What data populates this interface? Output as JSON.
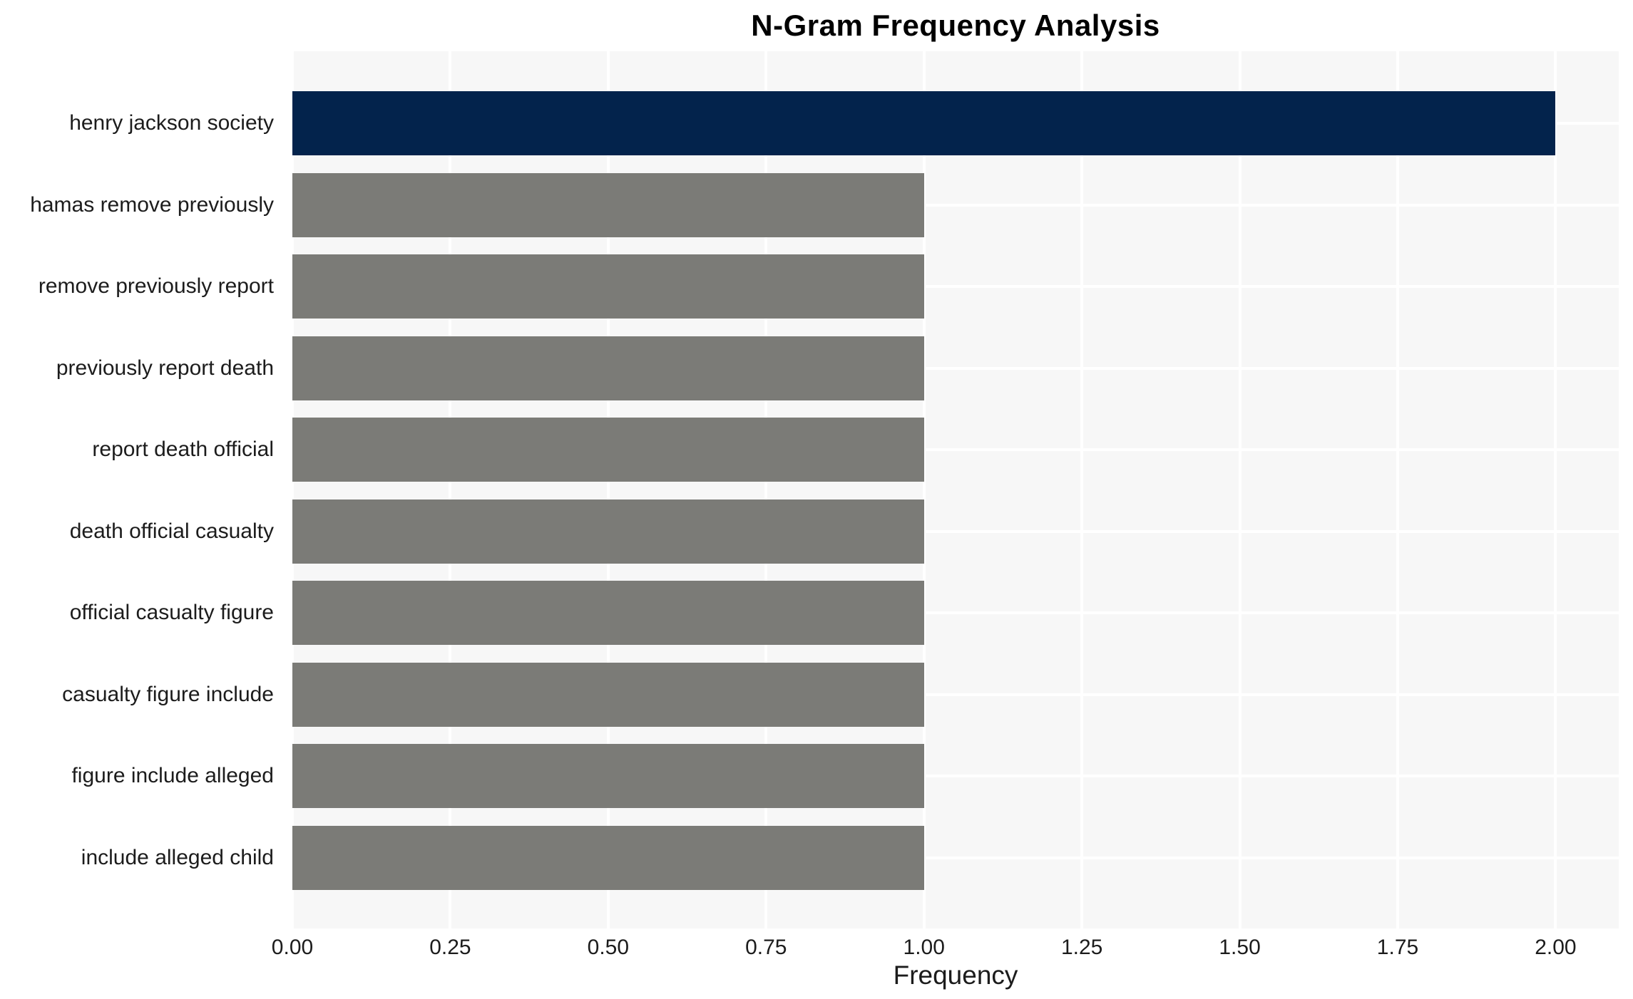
{
  "chart_data": {
    "type": "bar",
    "orientation": "horizontal",
    "title": "N-Gram Frequency Analysis",
    "xlabel": "Frequency",
    "ylabel": "",
    "categories": [
      "henry jackson society",
      "hamas remove previously",
      "remove previously report",
      "previously report death",
      "report death official",
      "death official casualty",
      "official casualty figure",
      "casualty figure include",
      "figure include alleged",
      "include alleged child"
    ],
    "values": [
      2,
      1,
      1,
      1,
      1,
      1,
      1,
      1,
      1,
      1
    ],
    "bar_colors": [
      "#03234c",
      "#7b7b77",
      "#7b7b77",
      "#7b7b77",
      "#7b7b77",
      "#7b7b77",
      "#7b7b77",
      "#7b7b77",
      "#7b7b77",
      "#7b7b77"
    ],
    "xlim": [
      0,
      2.1
    ],
    "xticks": [
      0.0,
      0.25,
      0.5,
      0.75,
      1.0,
      1.25,
      1.5,
      1.75,
      2.0
    ],
    "xtick_labels": [
      "0.00",
      "0.25",
      "0.50",
      "0.75",
      "1.00",
      "1.25",
      "1.50",
      "1.75",
      "2.00"
    ],
    "grid": true,
    "legend": false,
    "colors": {
      "highlight_bar": "#03234c",
      "default_bar": "#7b7b77",
      "panel_background": "#f7f7f7",
      "figure_background": "#ffffff",
      "gridline": "#ffffff",
      "text": "#1c1c1c",
      "title_text": "#000000"
    }
  }
}
